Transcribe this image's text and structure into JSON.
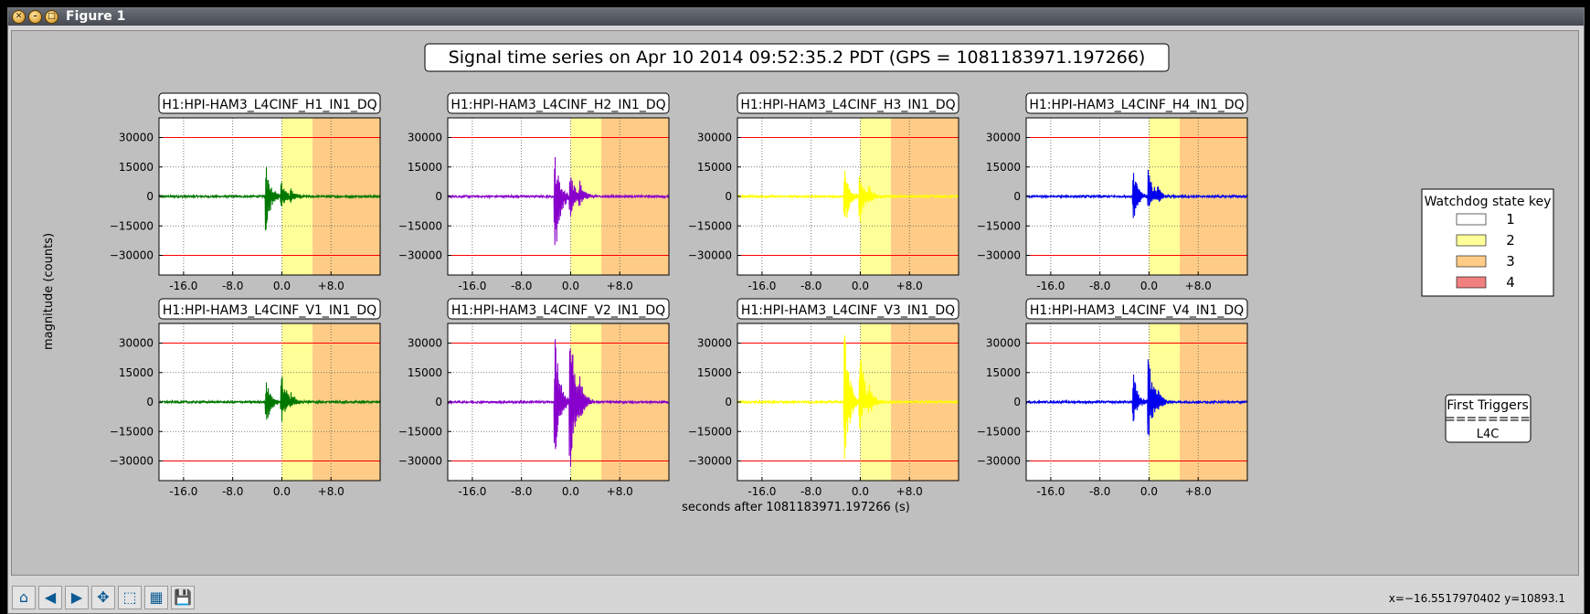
{
  "window": {
    "title": "Figure 1"
  },
  "toolbar": {
    "buttons": [
      "home-icon",
      "back-icon",
      "forward-icon",
      "pan-icon",
      "zoom-icon",
      "subplots-icon",
      "save-icon"
    ],
    "coords": "x=−16.5517970402 y=10893.1"
  },
  "figure": {
    "title": "Signal time series on Apr 10 2014 09:52:35.2 PDT (GPS = 1081183971.197266)",
    "ylabel": "magnitude (counts)",
    "xlabel": "seconds after 1081183971.197266 (s)",
    "legend": {
      "title": "Watchdog state key",
      "items": [
        {
          "label": "1",
          "color": "#ffffff"
        },
        {
          "label": "2",
          "color": "#ffff99"
        },
        {
          "label": "3",
          "color": "#ffcc88"
        },
        {
          "label": "4",
          "color": "#f08080"
        }
      ]
    },
    "first_triggers": {
      "title": "First Triggers",
      "rule": "========",
      "value": "L4C"
    }
  },
  "chart_data": {
    "type": "line",
    "xlim": [
      -20,
      16
    ],
    "ylim": [
      -40000,
      40000
    ],
    "xticks": [
      -16,
      -8,
      0,
      8
    ],
    "xtick_labels": [
      "-16.0",
      "-8.0",
      "0.0",
      "+8.0"
    ],
    "yticks": [
      30000,
      15000,
      0,
      -15000,
      -30000
    ],
    "ytick_labels": [
      "30000",
      "15000",
      "0",
      "−15000",
      "−30000"
    ],
    "threshold_lines": [
      30000,
      -30000
    ],
    "threshold_color": "#ff0000",
    "state_regions": [
      {
        "state": 2,
        "x": [
          0,
          5
        ],
        "color": "#ffff99"
      },
      {
        "state": 3,
        "x": [
          5,
          16
        ],
        "color": "#ffcc88"
      }
    ],
    "panels": [
      {
        "title": "H1:HPI-HAM3_L4CINF_H1_IN1_DQ",
        "color": "#007700",
        "events": [
          {
            "t": -2.5,
            "max": 15000,
            "min": -17000
          },
          {
            "t": 0.0,
            "max": 7000,
            "min": -5000
          },
          {
            "t": 1.5,
            "max": 4000,
            "min": -3000
          }
        ]
      },
      {
        "title": "H1:HPI-HAM3_L4CINF_H2_IN1_DQ",
        "color": "#8800cc",
        "events": [
          {
            "t": -2.5,
            "max": 20000,
            "min": -32000
          },
          {
            "t": 0.0,
            "max": 12000,
            "min": -10000
          },
          {
            "t": 1.5,
            "max": 8000,
            "min": -5000
          }
        ]
      },
      {
        "title": "H1:HPI-HAM3_L4CINF_H3_IN1_DQ",
        "color": "#ffff00",
        "events": [
          {
            "t": -2.5,
            "max": 13000,
            "min": -17000
          },
          {
            "t": 0.0,
            "max": 10000,
            "min": -13000
          },
          {
            "t": 1.5,
            "max": 5000,
            "min": -4000
          }
        ]
      },
      {
        "title": "H1:HPI-HAM3_L4CINF_H4_IN1_DQ",
        "color": "#0000ee",
        "events": [
          {
            "t": -2.5,
            "max": 12000,
            "min": -12000
          },
          {
            "t": 0.0,
            "max": 14000,
            "min": -5000
          },
          {
            "t": 1.5,
            "max": 5000,
            "min": -3000
          }
        ]
      },
      {
        "title": "H1:HPI-HAM3_L4CINF_V1_IN1_DQ",
        "color": "#007700",
        "events": [
          {
            "t": -2.5,
            "max": 10000,
            "min": -12000
          },
          {
            "t": 0.0,
            "max": 17000,
            "min": -10000
          },
          {
            "t": 1.5,
            "max": 5000,
            "min": -3000
          }
        ]
      },
      {
        "title": "H1:HPI-HAM3_L4CINF_V2_IN1_DQ",
        "color": "#8800cc",
        "events": [
          {
            "t": -2.5,
            "max": 32000,
            "min": -28000
          },
          {
            "t": 0.0,
            "max": 39000,
            "min": -33000
          },
          {
            "t": 1.5,
            "max": 13000,
            "min": -10000
          }
        ]
      },
      {
        "title": "H1:HPI-HAM3_L4CINF_V3_IN1_DQ",
        "color": "#ffff00",
        "events": [
          {
            "t": -2.5,
            "max": 34000,
            "min": -32000
          },
          {
            "t": 0.0,
            "max": 32000,
            "min": -14000
          },
          {
            "t": 1.5,
            "max": 9000,
            "min": -7000
          }
        ]
      },
      {
        "title": "H1:HPI-HAM3_L4CINF_V4_IN1_DQ",
        "color": "#0000ee",
        "events": [
          {
            "t": -2.5,
            "max": 14000,
            "min": -10000
          },
          {
            "t": 0.0,
            "max": 23000,
            "min": -17000
          },
          {
            "t": 1.5,
            "max": 6000,
            "min": -5000
          }
        ]
      }
    ]
  }
}
